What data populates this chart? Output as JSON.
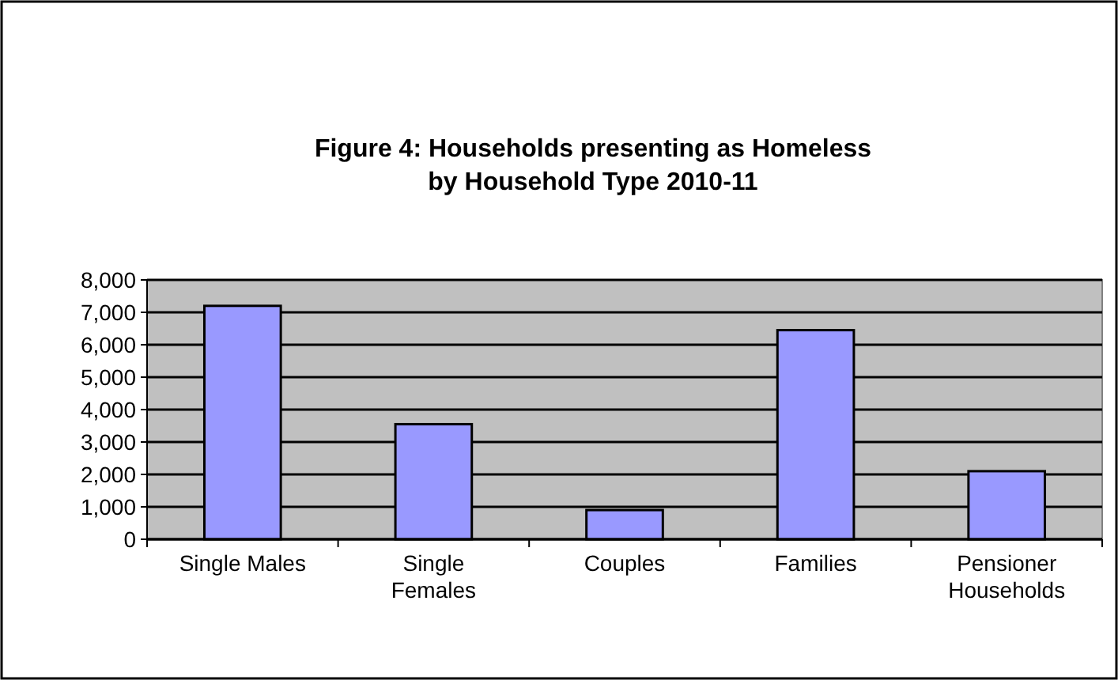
{
  "chart_data": {
    "type": "bar",
    "title": "Figure 4: Households presenting as Homeless by Household Type 2010-11",
    "categories": [
      "Single Males",
      "Single Females",
      "Couples",
      "Families",
      "Pensioner Households"
    ],
    "values": [
      7200,
      3550,
      900,
      6450,
      2100
    ],
    "color": "#9999ff",
    "ylim": [
      0,
      8000
    ],
    "yticks": [
      {
        "value": 0,
        "label": "0"
      },
      {
        "value": 1000,
        "label": "1,000"
      },
      {
        "value": 2000,
        "label": "2,000"
      },
      {
        "value": 3000,
        "label": "3,000"
      },
      {
        "value": 4000,
        "label": "4,000"
      },
      {
        "value": 5000,
        "label": "5,000"
      },
      {
        "value": 6000,
        "label": "6,000"
      },
      {
        "value": 7000,
        "label": "7,000"
      },
      {
        "value": 8000,
        "label": "8,000"
      }
    ],
    "grid": "y"
  }
}
